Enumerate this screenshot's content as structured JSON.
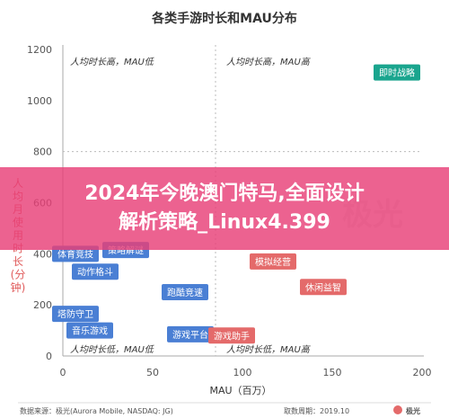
{
  "chart_data": {
    "type": "scatter",
    "title": "各类手游时长和MAU分布",
    "xlabel": "MAU（百万）",
    "ylabel_chars": [
      "人",
      "均",
      "月",
      "使",
      "用",
      "时",
      "长",
      "(分",
      "钟)"
    ],
    "xlim": [
      0,
      200
    ],
    "ylim": [
      0,
      1200
    ],
    "x_ticks": [
      0,
      50,
      100,
      150,
      200
    ],
    "y_ticks": [
      0,
      200,
      400,
      600,
      800,
      1000,
      1200
    ],
    "divider": {
      "x": 85,
      "y": 800
    },
    "grid": false,
    "quadrant_labels": {
      "top_left": "人均时长高，MAU低",
      "top_right": "人均时长高，MAU高",
      "bottom_left": "人均时长低，MAU低",
      "bottom_right": "人均时长低，MAU高"
    },
    "points": [
      {
        "label": "即时战略",
        "x": 186,
        "y": 1110,
        "color": "#1aa58e"
      },
      {
        "label": "体育竞技",
        "x": 7,
        "y": 400,
        "color": "#4a7fd4"
      },
      {
        "label": "动作格斗",
        "x": 18,
        "y": 330,
        "color": "#4a7fd4"
      },
      {
        "label": "策略解谜",
        "x": 35,
        "y": 415,
        "color": "#4a7fd4"
      },
      {
        "label": "塔防守卫",
        "x": 7,
        "y": 165,
        "color": "#4a7fd4"
      },
      {
        "label": "音乐游戏",
        "x": 15,
        "y": 100,
        "color": "#4a7fd4"
      },
      {
        "label": "跑酷竞速",
        "x": 68,
        "y": 250,
        "color": "#4a7fd4"
      },
      {
        "label": "游戏平台",
        "x": 71,
        "y": 85,
        "color": "#4a7fd4"
      },
      {
        "label": "游戏助手",
        "x": 94,
        "y": 80,
        "color": "#e46a6a"
      },
      {
        "label": "模拟经营",
        "x": 117,
        "y": 370,
        "color": "#e46a6a"
      },
      {
        "label": "休闲益智",
        "x": 145,
        "y": 270,
        "color": "#e46a6a"
      }
    ],
    "footer": {
      "source": "数据来源：极光(Aurora Mobile, NASDAQ: JG)",
      "period": "取数周期：2019.10",
      "brand": "极光"
    }
  },
  "banner": {
    "line1": "2024年今晚澳门特马,全面设计",
    "line2": "解析策略_Linux4.399"
  }
}
